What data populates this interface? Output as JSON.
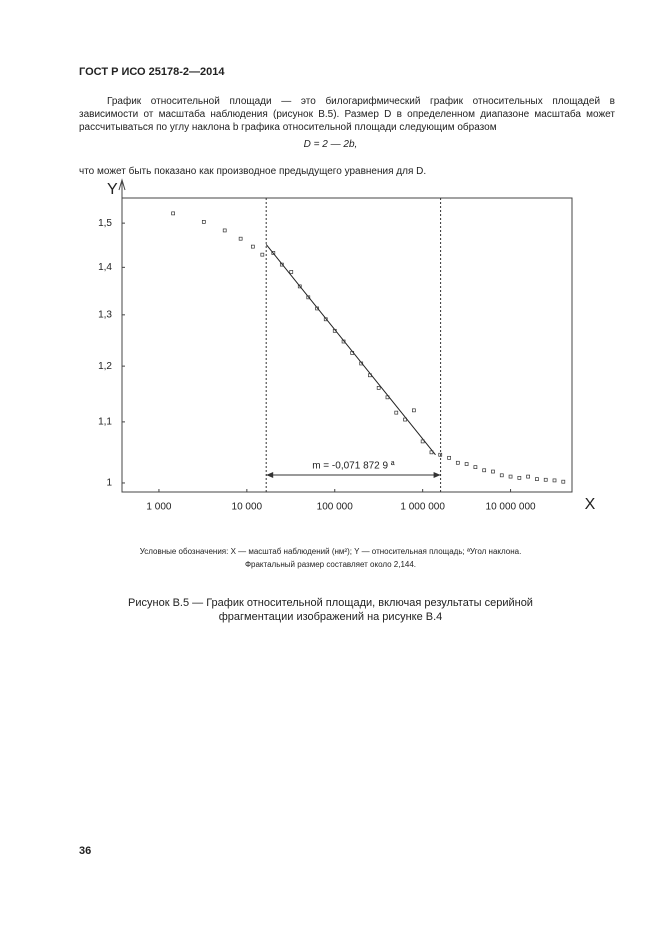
{
  "header": "ГОСТ Р ИСО 25178-2—2014",
  "paragraph": "График относительной площади — это билогарифмический график относительных площадей в зависимости от масштаба наблюдения (рисунок В.5). Размер D в определенном диапазоне масштаба может рассчитываться по углу наклона b графика относительной площади следующим образом",
  "formula": "D = 2 — 2b,",
  "paragraph2": "что может быть показано как производное предыдущего уравнения для D.",
  "chart_data": {
    "type": "scatter",
    "xlabel": "X",
    "ylabel": "Y",
    "xlog": true,
    "ylog": true,
    "color": "#333333",
    "xlim": [
      380,
      50000000
    ],
    "ylim": [
      0.986,
      1.56
    ],
    "xticks": [
      {
        "value": 1000,
        "label": "1 000"
      },
      {
        "value": 10000,
        "label": "10 000"
      },
      {
        "value": 100000,
        "label": "100 000"
      },
      {
        "value": 1000000,
        "label": "1 000 000"
      },
      {
        "value": 10000000,
        "label": "10 000 000"
      }
    ],
    "yticks": [
      1,
      {
        "value": 1.1,
        "label": "1,1"
      },
      {
        "value": 1.2,
        "label": "1,2"
      },
      {
        "value": 1.3,
        "label": "1,3"
      },
      {
        "value": 1.4,
        "label": "1,4"
      },
      {
        "value": 1.5,
        "label": "1,5"
      }
    ],
    "x": [
      1450,
      3240,
      5600,
      8500,
      11700,
      15000,
      20000,
      25000,
      32000,
      40000,
      50000,
      63000,
      79000,
      100000,
      126000,
      158000,
      200000,
      251000,
      316000,
      398000,
      501000,
      631000,
      794000,
      1000000,
      1260000,
      1585000,
      2000000,
      2512000,
      3162000,
      3981000,
      5012000,
      6310000,
      7943000,
      10000000,
      12589000,
      15849000,
      19953000,
      25119000,
      31623000,
      39811000
    ],
    "y": [
      1.523,
      1.503,
      1.483,
      1.464,
      1.446,
      1.428,
      1.432,
      1.406,
      1.39,
      1.359,
      1.336,
      1.313,
      1.291,
      1.268,
      1.247,
      1.225,
      1.205,
      1.183,
      1.16,
      1.143,
      1.116,
      1.104,
      1.12,
      1.067,
      1.049,
      1.045,
      1.04,
      1.032,
      1.03,
      1.025,
      1.02,
      1.018,
      1.012,
      1.01,
      1.008,
      1.01,
      1.006,
      1.005,
      1.004,
      1.002
    ],
    "fit": {
      "x": [
        16600,
        1400000
      ],
      "y": [
        1.451,
        1.045
      ]
    },
    "vlines": [
      16600,
      1600000
    ],
    "annotation": "m = -0,071 872 9 ª"
  },
  "notes": [
    "Условные обозначения: X — масштаб наблюдений (нм²); Y — относительная площадь; ªУгол наклона.",
    "Фрактальный размер составляет около 2,144."
  ],
  "caption": "Рисунок В.5 — График относительной площади, включая результаты серийной фрагментации изображений на рисунке В.4",
  "page_number": "36"
}
